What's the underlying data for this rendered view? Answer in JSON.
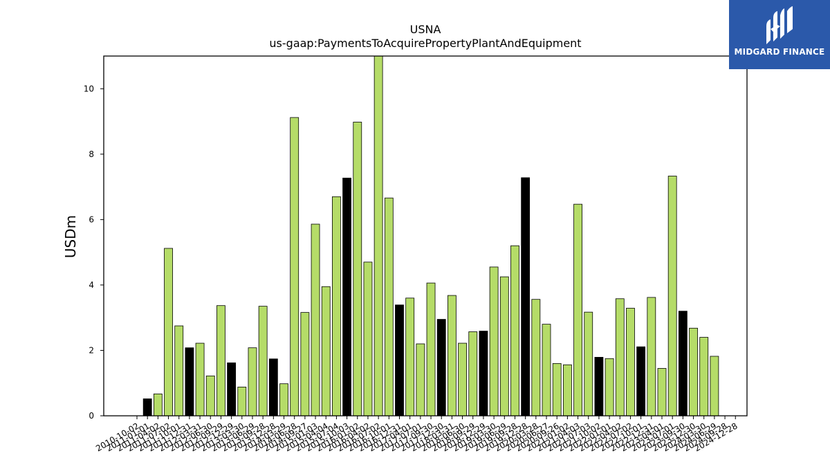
{
  "chart_data": {
    "type": "bar",
    "title": "USNA",
    "subtitle": "us-gaap:PaymentsToAcquirePropertyPlantAndEquipment",
    "ylabel": "USDm",
    "xlabel": "",
    "ylim": [
      0,
      11
    ],
    "yticks": [
      0,
      2,
      4,
      6,
      8,
      10
    ],
    "grid": false,
    "colors": {
      "quarter": "#b5dc68",
      "year_end": "#000000",
      "edge": "#000000"
    },
    "categories": [
      "2010-10-02",
      "2011-01-01",
      "2011-04-02",
      "2011-07-02",
      "2011-10-01",
      "2011-12-31",
      "2012-03-31",
      "2012-06-30",
      "2012-09-29",
      "2012-12-29",
      "2013-03-30",
      "2013-06-29",
      "2013-09-28",
      "2013-12-28",
      "2014-03-29",
      "2014-06-28",
      "2014-09-27",
      "2015-01-03",
      "2015-04-04",
      "2015-07-04",
      "2015-10-03",
      "2016-01-02",
      "2016-04-02",
      "2016-07-02",
      "2016-10-01",
      "2016-12-31",
      "2017-04-01",
      "2017-07-01",
      "2017-09-30",
      "2017-12-30",
      "2018-03-31",
      "2018-06-30",
      "2018-09-29",
      "2018-12-29",
      "2019-03-30",
      "2019-06-29",
      "2019-09-28",
      "2019-12-28",
      "2020-03-28",
      "2020-06-27",
      "2020-09-26",
      "2021-01-02",
      "2021-04-03",
      "2021-07-03",
      "2021-10-02",
      "2022-01-01",
      "2022-04-02",
      "2022-07-02",
      "2022-10-01",
      "2022-12-31",
      "2023-04-01",
      "2023-07-01",
      "2023-09-30",
      "2023-12-30",
      "2024-03-30",
      "2024-06-29",
      "2024-09-28",
      "2024-12-28"
    ],
    "values": [
      0.0,
      0.52,
      0.67,
      5.12,
      2.75,
      2.08,
      2.22,
      1.22,
      3.37,
      1.62,
      0.88,
      2.08,
      3.35,
      1.74,
      0.98,
      9.12,
      3.16,
      5.86,
      3.95,
      6.7,
      7.27,
      8.98,
      4.7,
      11.0,
      6.66,
      3.39,
      3.6,
      2.2,
      4.06,
      2.95,
      3.68,
      2.22,
      2.57,
      2.59,
      4.55,
      4.25,
      5.2,
      7.28,
      3.56,
      2.8,
      1.6,
      1.56,
      6.47,
      3.17,
      1.79,
      1.75,
      3.58,
      3.29,
      2.11,
      3.62,
      1.45,
      7.33,
      3.2,
      2.68,
      2.4,
      1.82,
      0,
      0
    ],
    "year_end_flags": [
      1,
      1,
      0,
      0,
      0,
      1,
      0,
      0,
      0,
      1,
      0,
      0,
      0,
      1,
      0,
      0,
      0,
      0,
      0,
      0,
      1,
      0,
      0,
      0,
      0,
      1,
      0,
      0,
      0,
      1,
      0,
      0,
      0,
      1,
      0,
      0,
      0,
      1,
      0,
      0,
      0,
      0,
      0,
      0,
      1,
      0,
      0,
      0,
      1,
      0,
      0,
      0,
      1,
      0,
      0,
      0,
      0,
      1
    ]
  },
  "logo": {
    "text": "MIDGARD FINANCE",
    "background": "#2b59aa"
  }
}
